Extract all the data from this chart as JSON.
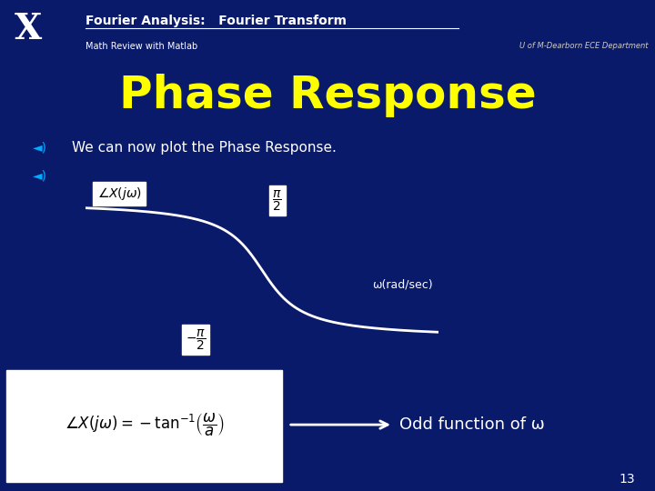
{
  "bg_color": "#0a1a6b",
  "header_bg": "#1a3a9a",
  "title_text": "Phase Response",
  "title_color": "#ffff00",
  "title_fontsize": 36,
  "header_title": "Fourier Analysis:   Fourier Transform",
  "header_subtitle": "Math Review with Matlab",
  "header_right": "U of M-Dearborn ECE Department",
  "bullet1": "We can now plot the Phase Response.",
  "bullet_color": "#ffffff",
  "omega_label": "ω(rad/sec)",
  "odd_func_text": "Odd function of ω",
  "plot_line_color": "#ffffff",
  "axes_color": "#ffffff",
  "page_number": "13",
  "accent_color": "#00aaff"
}
